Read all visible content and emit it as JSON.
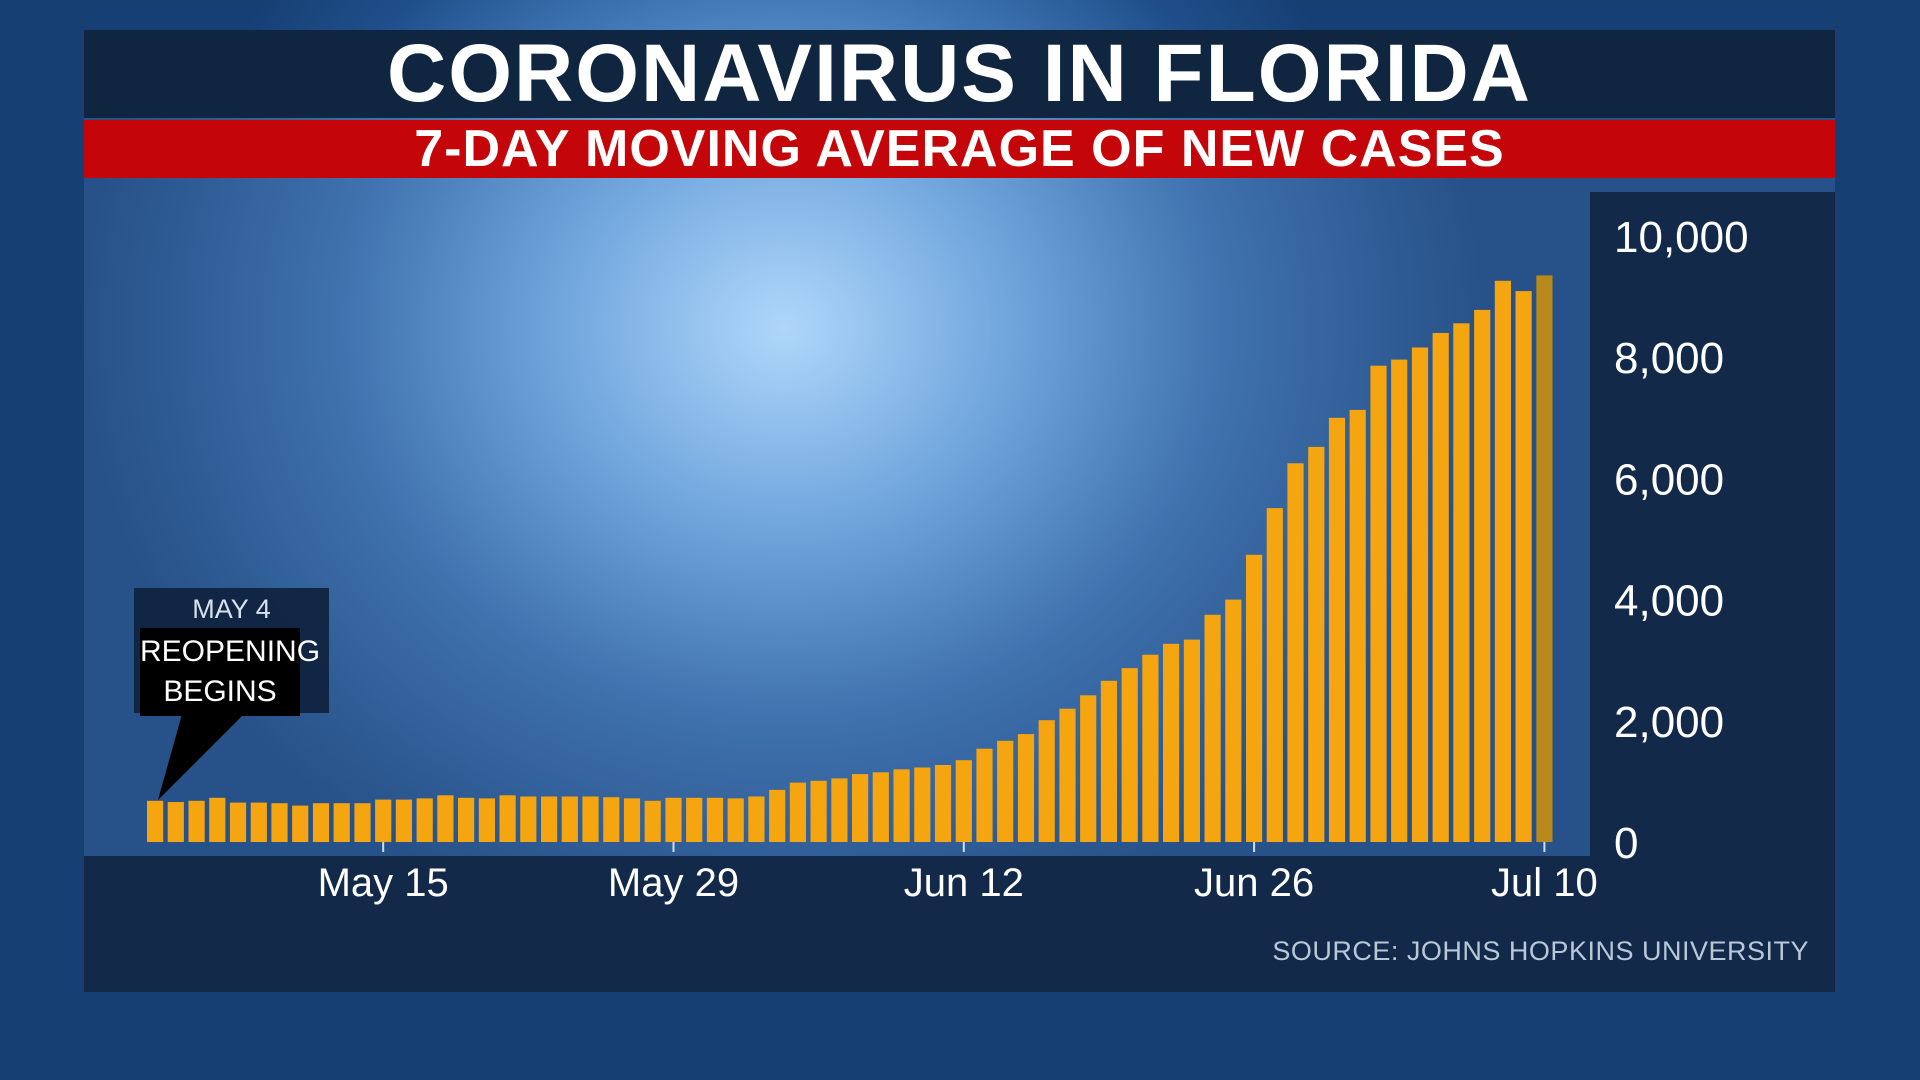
{
  "header": {
    "title": "CORONAVIRUS IN FLORIDA",
    "subtitle": "7-DAY MOVING AVERAGE OF NEW CASES"
  },
  "annotation": {
    "date": "MAY 4",
    "line1": "REOPENING",
    "line2": "BEGINS"
  },
  "source": "SOURCE: JOHNS HOPKINS UNIVERSITY",
  "colors": {
    "bar": "#f5a50f",
    "last_bar": "#b9891c",
    "title_bar": "#0f2540",
    "subtitle_bar": "#c4060b"
  },
  "chart_data": {
    "type": "bar",
    "title": "CORONAVIRUS IN FLORIDA",
    "subtitle": "7-DAY MOVING AVERAGE OF NEW CASES",
    "xlabel": "",
    "ylabel": "",
    "ylim": [
      0,
      10000
    ],
    "yticks": [
      0,
      2000,
      4000,
      6000,
      8000,
      10000
    ],
    "ytick_labels": [
      "0",
      "2,000",
      "4,000",
      "6,000",
      "8,000",
      "10,000"
    ],
    "x_start": "May 4",
    "x_end": "Jul 10",
    "xtick_labels": [
      "May 15",
      "May 29",
      "Jun 12",
      "Jun 26",
      "Jul 10"
    ],
    "xtick_dates": [
      "May 15",
      "May 29",
      "Jun 12",
      "Jun 26",
      "Jul 10"
    ],
    "categories": [
      "May 4",
      "May 5",
      "May 6",
      "May 7",
      "May 8",
      "May 9",
      "May 10",
      "May 11",
      "May 12",
      "May 13",
      "May 14",
      "May 15",
      "May 16",
      "May 17",
      "May 18",
      "May 19",
      "May 20",
      "May 21",
      "May 22",
      "May 23",
      "May 24",
      "May 25",
      "May 26",
      "May 27",
      "May 28",
      "May 29",
      "May 30",
      "May 31",
      "Jun 1",
      "Jun 2",
      "Jun 3",
      "Jun 4",
      "Jun 5",
      "Jun 6",
      "Jun 7",
      "Jun 8",
      "Jun 9",
      "Jun 10",
      "Jun 11",
      "Jun 12",
      "Jun 13",
      "Jun 14",
      "Jun 15",
      "Jun 16",
      "Jun 17",
      "Jun 18",
      "Jun 19",
      "Jun 20",
      "Jun 21",
      "Jun 22",
      "Jun 23",
      "Jun 24",
      "Jun 25",
      "Jun 26",
      "Jun 27",
      "Jun 28",
      "Jun 29",
      "Jun 30",
      "Jul 1",
      "Jul 2",
      "Jul 3",
      "Jul 4",
      "Jul 5",
      "Jul 6",
      "Jul 7",
      "Jul 8",
      "Jul 9",
      "Jul 10"
    ],
    "values": [
      680,
      660,
      680,
      730,
      650,
      650,
      640,
      600,
      640,
      640,
      640,
      700,
      700,
      720,
      770,
      730,
      720,
      770,
      750,
      750,
      750,
      750,
      740,
      720,
      680,
      730,
      730,
      730,
      720,
      750,
      860,
      980,
      1010,
      1050,
      1120,
      1150,
      1200,
      1230,
      1270,
      1350,
      1540,
      1670,
      1780,
      2010,
      2200,
      2420,
      2660,
      2870,
      3090,
      3270,
      3340,
      3750,
      4000,
      4740,
      5510,
      6250,
      6520,
      7000,
      7130,
      7860,
      7960,
      8160,
      8400,
      8560,
      8780,
      9260,
      9090,
      9350
    ]
  }
}
